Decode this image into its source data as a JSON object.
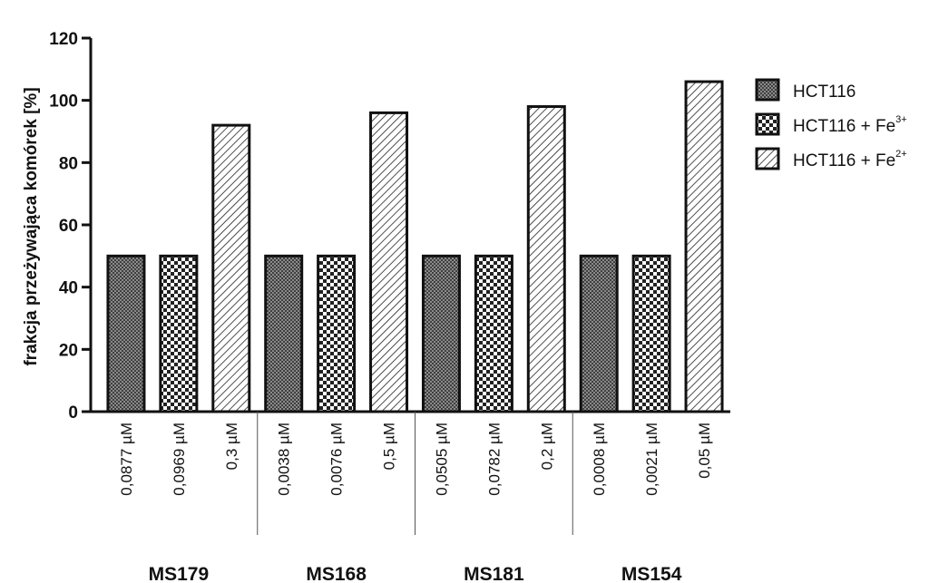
{
  "chart_data": {
    "type": "bar",
    "ylabel": "frakcja przeżywająca komórek [%]",
    "ylim": [
      0,
      120
    ],
    "yticks": [
      0,
      20,
      40,
      60,
      80,
      100,
      120
    ],
    "groups": [
      "MS179",
      "MS168",
      "MS181",
      "MS154"
    ],
    "series": [
      {
        "name": "HCT116",
        "pattern": "dense-dots"
      },
      {
        "name": "HCT116 + Fe",
        "superscript": "3+",
        "pattern": "checker"
      },
      {
        "name": "HCT116 + Fe",
        "superscript": "2+",
        "pattern": "diagonal-hatch"
      }
    ],
    "bars": [
      {
        "group": "MS179",
        "series": 0,
        "label": "0,0877 µM",
        "value": 50
      },
      {
        "group": "MS179",
        "series": 1,
        "label": "0,0969 µM",
        "value": 50
      },
      {
        "group": "MS179",
        "series": 2,
        "label": "0,3 µM",
        "value": 92
      },
      {
        "group": "MS168",
        "series": 0,
        "label": "0,0038 µM",
        "value": 50
      },
      {
        "group": "MS168",
        "series": 1,
        "label": "0,0076 µM",
        "value": 50
      },
      {
        "group": "MS168",
        "series": 2,
        "label": "0,5 µM",
        "value": 96
      },
      {
        "group": "MS181",
        "series": 0,
        "label": "0,0505 µM",
        "value": 50
      },
      {
        "group": "MS181",
        "series": 1,
        "label": "0,0782 µM",
        "value": 50
      },
      {
        "group": "MS181",
        "series": 2,
        "label": "0,2 µM",
        "value": 98
      },
      {
        "group": "MS154",
        "series": 0,
        "label": "0,0008 µM",
        "value": 50
      },
      {
        "group": "MS154",
        "series": 1,
        "label": "0,0021 µM",
        "value": 50
      },
      {
        "group": "MS154",
        "series": 2,
        "label": "0,05 µM",
        "value": 106
      }
    ],
    "legend_position": "right",
    "grid": false,
    "colors": {
      "stroke": "#111111",
      "fill_dark": "#6f6f6f",
      "fill_light": "#ffffff"
    }
  }
}
